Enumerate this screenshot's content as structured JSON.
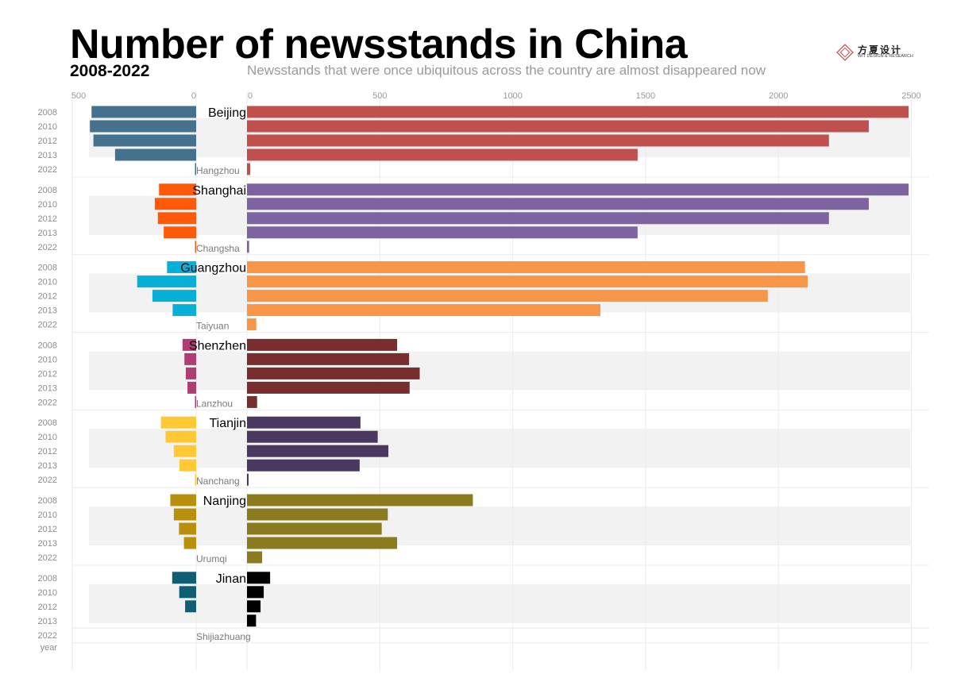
{
  "header": {
    "title": "Number of newsstands in China",
    "years": "2008-2022",
    "subtitle": "Newsstands that were once ubiquitous across the country are almost disappeared now"
  },
  "logo": {
    "cn": "方夏设计",
    "en": "WIT DESIGN & RESEARCH"
  },
  "chart_data": {
    "type": "bar",
    "orientation": "horizontal",
    "layout": "back-to-back paired bars",
    "year_axis_label": "year",
    "years": [
      "2008",
      "2010",
      "2012",
      "2013",
      "2022"
    ],
    "left_axis": {
      "ticks": [
        500,
        0
      ],
      "range": [
        0,
        500
      ]
    },
    "right_axis": {
      "ticks": [
        0,
        500,
        1000,
        1500,
        2000,
        2500
      ],
      "range": [
        0,
        2500
      ]
    },
    "grid": true,
    "groups": [
      {
        "right_city": "Beijing",
        "right_color": "#c0504d",
        "right_values": [
          2490,
          2340,
          2190,
          1470,
          12
        ],
        "left_city": "Hangzhou",
        "left_color": "#44718e",
        "left_values": [
          445,
          452,
          437,
          345,
          5
        ]
      },
      {
        "right_city": "Shanghai",
        "right_color": "#7d63a0",
        "right_values": [
          2490,
          2340,
          2190,
          1470,
          8
        ],
        "left_city": "Changsha",
        "left_color": "#ff5a0a",
        "left_values": [
          158,
          176,
          163,
          138,
          5
        ]
      },
      {
        "right_city": "Guangzhou",
        "right_color": "#f79646",
        "right_values": [
          2100,
          2110,
          1960,
          1330,
          35
        ],
        "left_city": "Taiyuan",
        "left_color": "#07b0d6",
        "left_values": [
          124,
          251,
          186,
          100,
          0
        ]
      },
      {
        "right_city": "Shenzhen",
        "right_color": "#782e2e",
        "right_values": [
          565,
          610,
          650,
          612,
          38
        ],
        "left_city": "Lanzhou",
        "left_color": "#b03c73",
        "left_values": [
          58,
          50,
          44,
          37,
          3
        ]
      },
      {
        "right_city": "Tianjin",
        "right_color": "#4b3860",
        "right_values": [
          427,
          492,
          532,
          424,
          4
        ],
        "left_city": "Nanchang",
        "left_color": "#ffc935",
        "left_values": [
          150,
          130,
          95,
          71,
          4
        ]
      },
      {
        "right_city": "Nanjing",
        "right_color": "#8a7c1e",
        "right_values": [
          850,
          530,
          507,
          565,
          57
        ],
        "left_city": "Urumqi",
        "left_color": "#b8900e",
        "left_values": [
          110,
          95,
          73,
          52,
          0
        ]
      },
      {
        "right_city": "Jinan",
        "right_color": "#000000",
        "right_values": [
          87,
          63,
          51,
          34,
          0
        ],
        "left_city": "Shijiazhuang",
        "left_color": "#0f5e74",
        "left_values": [
          102,
          72,
          47,
          0,
          0
        ]
      }
    ]
  }
}
